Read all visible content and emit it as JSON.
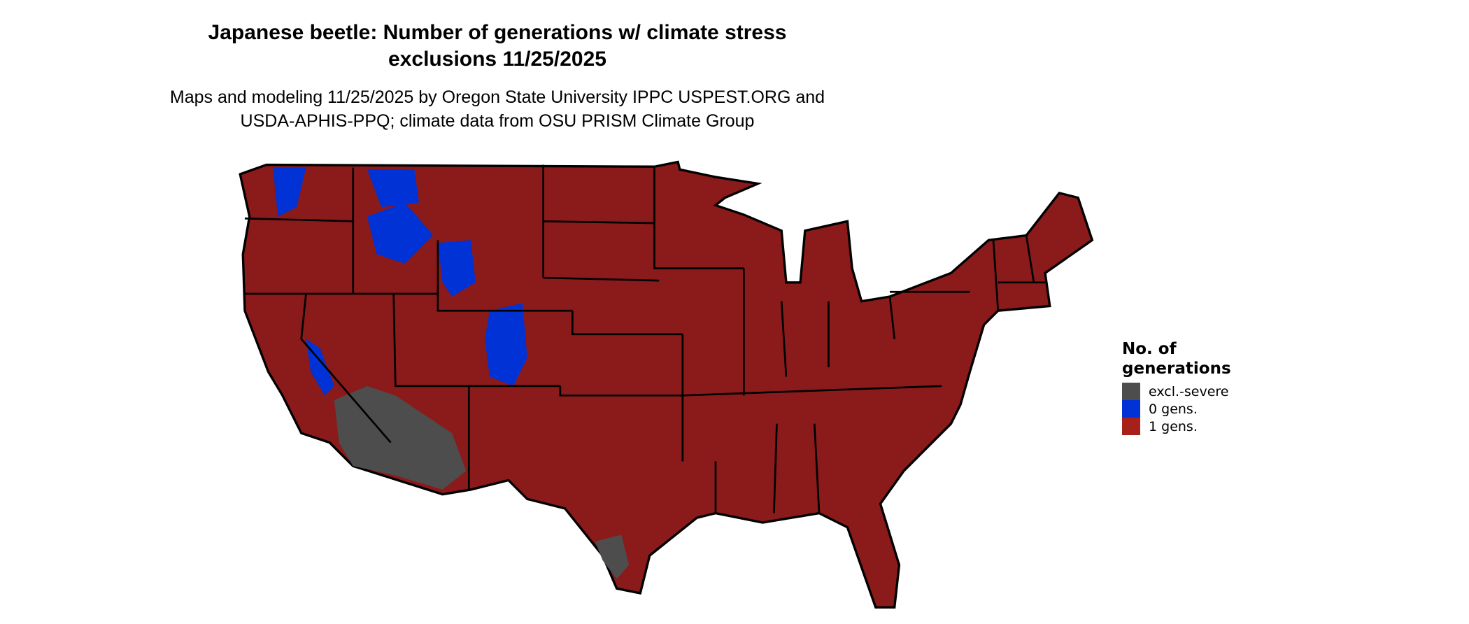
{
  "title_line1": "Japanese beetle: Number of generations w/ climate stress",
  "title_line2": "exclusions 11/25/2025",
  "subtitle_line1": "Maps and modeling 11/25/2025 by Oregon State University IPPC USPEST.ORG and",
  "subtitle_line2": "USDA-APHIS-PPQ; climate data from OSU PRISM Climate Group",
  "map_region": "Contiguous United States",
  "legend": {
    "title_line1": "No. of",
    "title_line2": "generations",
    "items": [
      {
        "label": "excl.-severe",
        "color": "#4d4d4d"
      },
      {
        "label": "0 gens.",
        "color": "#0032d6"
      },
      {
        "label": "1 gens.",
        "color": "#a8201a"
      }
    ]
  },
  "colors": {
    "map_fill": "#8b1a1a",
    "border": "#000000"
  }
}
